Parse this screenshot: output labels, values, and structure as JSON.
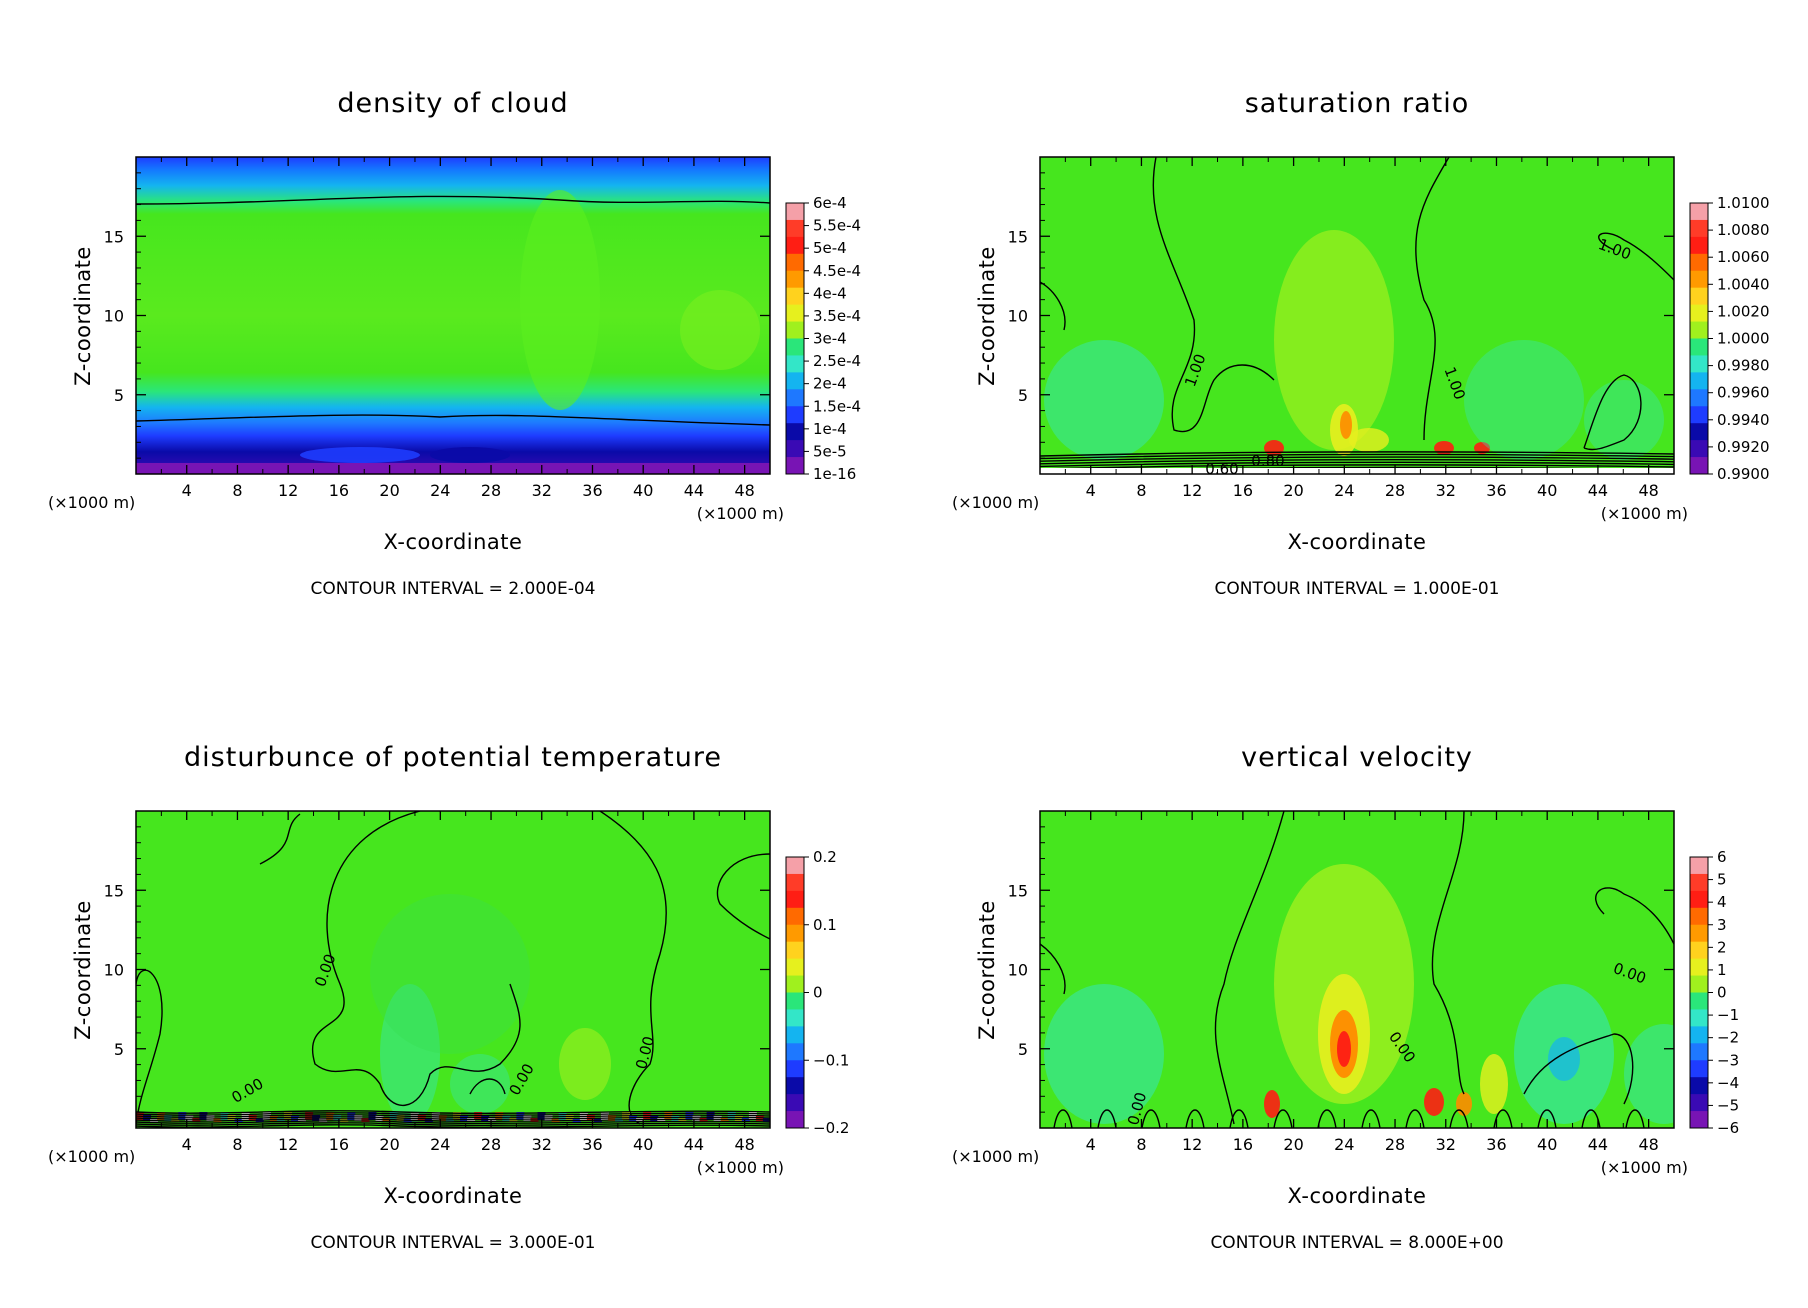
{
  "chart_data": [
    {
      "type": "heatmap",
      "id": "cloud",
      "title": "density of cloud",
      "xlabel": "X-coordinate",
      "ylabel": "Z-coordinate",
      "x_unit_left": "(×1000 m)",
      "x_unit_right": "(×1000 m)",
      "xlim": [
        0,
        50
      ],
      "ylim": [
        0,
        20
      ],
      "xticks": [
        4,
        8,
        12,
        16,
        20,
        24,
        28,
        32,
        36,
        40,
        44,
        48
      ],
      "yticks": [
        5,
        10,
        15
      ],
      "colorbar": [
        "6e-4",
        "5.5e-4",
        "5e-4",
        "4.5e-4",
        "4e-4",
        "3.5e-4",
        "3e-4",
        "2.5e-4",
        "2e-4",
        "1.5e-4",
        "1e-4",
        "5e-5",
        "1e-16"
      ],
      "contour_interval": "CONTOUR INTERVAL = 2.000E-04",
      "contour_labels": []
    },
    {
      "type": "heatmap",
      "id": "saturation",
      "title": "saturation ratio",
      "xlabel": "X-coordinate",
      "ylabel": "Z-coordinate",
      "x_unit_left": "(×1000 m)",
      "x_unit_right": "(×1000 m)",
      "xlim": [
        0,
        50
      ],
      "ylim": [
        0,
        20
      ],
      "xticks": [
        4,
        8,
        12,
        16,
        20,
        24,
        28,
        32,
        36,
        40,
        44,
        48
      ],
      "yticks": [
        5,
        10,
        15
      ],
      "colorbar": [
        "1.0100",
        "1.0080",
        "1.0060",
        "1.0040",
        "1.0020",
        "1.0000",
        "0.9980",
        "0.9960",
        "0.9940",
        "0.9920",
        "0.9900"
      ],
      "contour_interval": "CONTOUR INTERVAL = 1.000E-01",
      "contour_labels": [
        "1.00",
        "1.00",
        "1.00",
        "0.60",
        "0.80"
      ]
    },
    {
      "type": "heatmap",
      "id": "theta",
      "title": "disturbunce of potential temperature",
      "xlabel": "X-coordinate",
      "ylabel": "Z-coordinate",
      "x_unit_left": "(×1000 m)",
      "x_unit_right": "(×1000 m)",
      "xlim": [
        0,
        50
      ],
      "ylim": [
        0,
        20
      ],
      "xticks": [
        4,
        8,
        12,
        16,
        20,
        24,
        28,
        32,
        36,
        40,
        44,
        48
      ],
      "yticks": [
        5,
        10,
        15
      ],
      "colorbar": [
        "0.2",
        "0.1",
        "0",
        "−0.1",
        "−0.2"
      ],
      "contour_interval": "CONTOUR INTERVAL = 3.000E-01",
      "contour_labels": [
        "0.00",
        "0.00",
        "0.00",
        "0.00"
      ]
    },
    {
      "type": "heatmap",
      "id": "velocity",
      "title": "vertical velocity",
      "xlabel": "X-coordinate",
      "ylabel": "Z-coordinate",
      "x_unit_left": "(×1000 m)",
      "x_unit_right": "(×1000 m)",
      "xlim": [
        0,
        50
      ],
      "ylim": [
        0,
        20
      ],
      "xticks": [
        4,
        8,
        12,
        16,
        20,
        24,
        28,
        32,
        36,
        40,
        44,
        48
      ],
      "yticks": [
        5,
        10,
        15
      ],
      "colorbar": [
        "6",
        "5",
        "4",
        "3",
        "2",
        "1",
        "0",
        "−1",
        "−2",
        "−3",
        "−4",
        "−5",
        "−6"
      ],
      "contour_interval": "CONTOUR INTERVAL = 8.000E+00",
      "contour_labels": [
        "0.00",
        "0.00",
        "0.00"
      ]
    }
  ],
  "colors": {
    "field_green": "#46e61e",
    "cyan": "#33e6c8",
    "blue": "#1e3cff",
    "navy": "#0a0aa8",
    "purple": "#7814b4",
    "yellow": "#e6f01e",
    "orange": "#ff8c00",
    "red": "#ff1e14",
    "pink": "#f08c96"
  }
}
